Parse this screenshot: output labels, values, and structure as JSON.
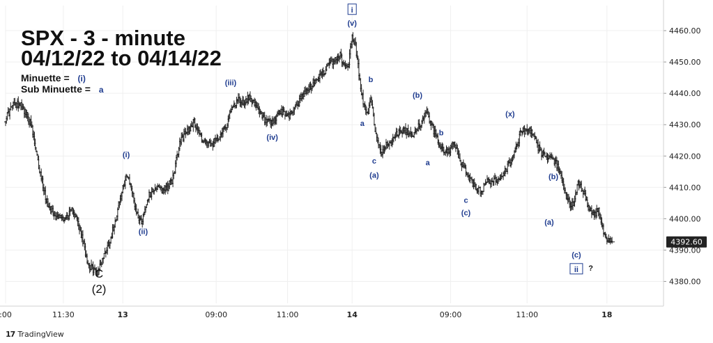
{
  "title_line1": "SPX - 3 - minute",
  "title_line2": "04/12/22 to 04/14/22",
  "legend": {
    "minuette_label": "Minuette =",
    "minuette_symbol": "(i)",
    "subminuette_label": "Sub Minuette =",
    "subminuette_symbol": "a"
  },
  "footer": {
    "brand": "TradingView",
    "logo": "17"
  },
  "colors": {
    "wave_label": "#1f3c8f",
    "major_label": "#111111",
    "candle": "#222222",
    "grid": "#efefef",
    "price_badge_bg": "#222222"
  },
  "chart_data": {
    "type": "ohlc",
    "y_ticks": [
      4380,
      4390,
      4400,
      4410,
      4420,
      4430,
      4440,
      4450,
      4460
    ],
    "y_tick_labels": [
      "4380.00",
      "4390.00",
      "4400.00",
      "4410.00",
      "4420.00",
      "4430.00",
      "4440.00",
      "4450.00",
      "4460.00"
    ],
    "ylim": [
      4373,
      4468
    ],
    "x_ticks": [
      ":00",
      "11:30",
      "13",
      "09:00",
      "11:00",
      "14",
      "09:00",
      "11:00",
      "18"
    ],
    "x_tick_positions": [
      0,
      68,
      138,
      248,
      332,
      408,
      524,
      614,
      708
    ],
    "xlim": [
      0,
      750
    ],
    "last_price": "4392.60",
    "last_price_value": 4392.6,
    "anchors": [
      [
        0,
        4432
      ],
      [
        8,
        4436
      ],
      [
        18,
        4437
      ],
      [
        30,
        4430
      ],
      [
        38,
        4418
      ],
      [
        48,
        4406
      ],
      [
        58,
        4401
      ],
      [
        70,
        4400
      ],
      [
        80,
        4403
      ],
      [
        88,
        4396
      ],
      [
        98,
        4385
      ],
      [
        108,
        4383
      ],
      [
        114,
        4387
      ],
      [
        124,
        4394
      ],
      [
        134,
        4405
      ],
      [
        142,
        4414
      ],
      [
        148,
        4410
      ],
      [
        154,
        4402
      ],
      [
        160,
        4399
      ],
      [
        168,
        4407
      ],
      [
        176,
        4410
      ],
      [
        186,
        4409
      ],
      [
        196,
        4412
      ],
      [
        206,
        4425
      ],
      [
        214,
        4428
      ],
      [
        222,
        4431
      ],
      [
        232,
        4425
      ],
      [
        242,
        4423
      ],
      [
        250,
        4426
      ],
      [
        260,
        4430
      ],
      [
        268,
        4436
      ],
      [
        274,
        4438
      ],
      [
        280,
        4437
      ],
      [
        288,
        4439
      ],
      [
        296,
        4435
      ],
      [
        306,
        4431
      ],
      [
        314,
        4430
      ],
      [
        322,
        4434
      ],
      [
        334,
        4433
      ],
      [
        342,
        4436
      ],
      [
        352,
        4440
      ],
      [
        362,
        4443
      ],
      [
        372,
        4446
      ],
      [
        384,
        4450
      ],
      [
        394,
        4452
      ],
      [
        400,
        4448
      ],
      [
        404,
        4450
      ],
      [
        408,
        4458
      ],
      [
        412,
        4455
      ],
      [
        418,
        4442
      ],
      [
        422,
        4436
      ],
      [
        426,
        4433
      ],
      [
        430,
        4438
      ],
      [
        436,
        4427
      ],
      [
        442,
        4421
      ],
      [
        450,
        4424
      ],
      [
        460,
        4427
      ],
      [
        470,
        4428
      ],
      [
        480,
        4427
      ],
      [
        490,
        4431
      ],
      [
        496,
        4434
      ],
      [
        504,
        4428
      ],
      [
        512,
        4423
      ],
      [
        520,
        4421
      ],
      [
        528,
        4424
      ],
      [
        536,
        4418
      ],
      [
        544,
        4414
      ],
      [
        552,
        4410
      ],
      [
        560,
        4409
      ],
      [
        568,
        4412
      ],
      [
        578,
        4412
      ],
      [
        588,
        4415
      ],
      [
        598,
        4420
      ],
      [
        606,
        4427
      ],
      [
        614,
        4429
      ],
      [
        622,
        4426
      ],
      [
        630,
        4421
      ],
      [
        640,
        4419
      ],
      [
        648,
        4418
      ],
      [
        654,
        4413
      ],
      [
        660,
        4407
      ],
      [
        666,
        4404
      ],
      [
        670,
        4406
      ],
      [
        674,
        4411
      ],
      [
        680,
        4409
      ],
      [
        686,
        4404
      ],
      [
        692,
        4401
      ],
      [
        698,
        4403
      ],
      [
        702,
        4398
      ],
      [
        708,
        4393
      ],
      [
        714,
        4392.6
      ]
    ],
    "wave_labels": [
      {
        "text": "C",
        "x": 110,
        "y": 4382.5,
        "style": "major"
      },
      {
        "text": "(2)",
        "x": 110,
        "y": 4377.7,
        "style": "major"
      },
      {
        "text": "(i)",
        "x": 142,
        "y": 4420.5,
        "style": "minor"
      },
      {
        "text": "(ii)",
        "x": 162,
        "y": 4396,
        "style": "minor"
      },
      {
        "text": "(iii)",
        "x": 265,
        "y": 4443.5,
        "style": "minor"
      },
      {
        "text": "(iv)",
        "x": 314,
        "y": 4426,
        "style": "minor"
      },
      {
        "text": "(v)",
        "x": 408,
        "y": 4462.5,
        "style": "minor"
      },
      {
        "text": "i",
        "x": 408,
        "y": 4466.5,
        "style": "boxed"
      },
      {
        "text": "a",
        "x": 420,
        "y": 4430.5,
        "style": "minor"
      },
      {
        "text": "b",
        "x": 430,
        "y": 4444.5,
        "style": "minor"
      },
      {
        "text": "c",
        "x": 434,
        "y": 4418.5,
        "style": "minor"
      },
      {
        "text": "(a)",
        "x": 434,
        "y": 4414,
        "style": "minor"
      },
      {
        "text": "(b)",
        "x": 485,
        "y": 4439.5,
        "style": "minor"
      },
      {
        "text": "b",
        "x": 513,
        "y": 4427.5,
        "style": "minor"
      },
      {
        "text": "a",
        "x": 497,
        "y": 4418,
        "style": "minor"
      },
      {
        "text": "c",
        "x": 542,
        "y": 4406,
        "style": "minor"
      },
      {
        "text": "(c)",
        "x": 542,
        "y": 4402,
        "style": "minor"
      },
      {
        "text": "(x)",
        "x": 594,
        "y": 4433.5,
        "style": "minor"
      },
      {
        "text": "(b)",
        "x": 645,
        "y": 4413.5,
        "style": "minor"
      },
      {
        "text": "(a)",
        "x": 640,
        "y": 4399,
        "style": "minor"
      },
      {
        "text": "(c)",
        "x": 672,
        "y": 4388.5,
        "style": "minor"
      },
      {
        "text": "ii",
        "x": 672,
        "y": 4383.7,
        "style": "boxed"
      },
      {
        "text": "?",
        "x": 689,
        "y": 4384.3,
        "style": "plain"
      }
    ],
    "title": "SPX - 3 - minute",
    "xlabel": "",
    "ylabel": ""
  }
}
